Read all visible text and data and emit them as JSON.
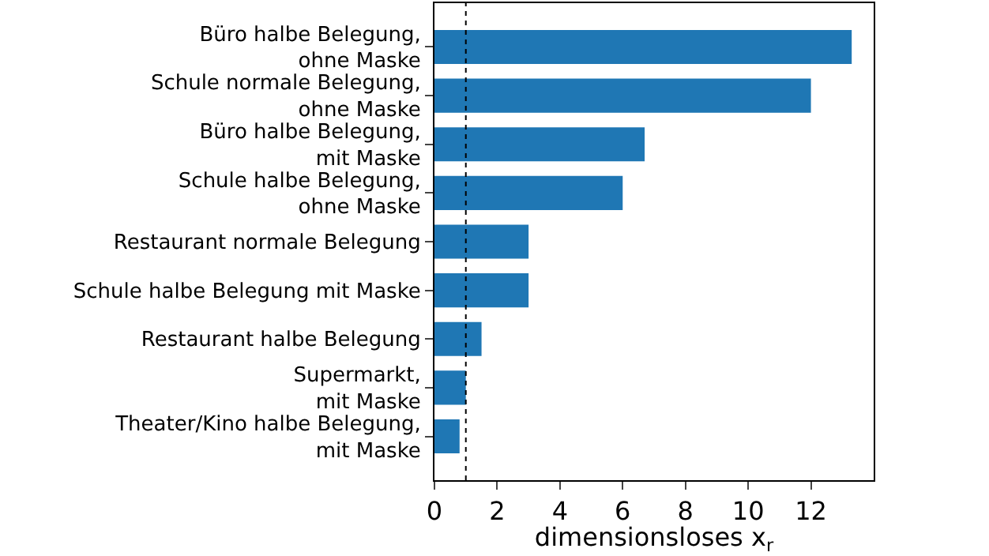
{
  "chart_data": {
    "type": "bar",
    "orientation": "horizontal",
    "xlabel": "dimensionsloses x$_{r}$",
    "categories": [
      "Büro halbe Belegung,\nohne Maske",
      "Schule normale Belegung,\nohne Maske",
      "Büro halbe Belegung,\nmit Maske",
      "Schule halbe Belegung,\nohne Maske",
      "Restaurant normale Belegung",
      "Schule halbe Belegung mit Maske",
      "Restaurant halbe Belegung",
      "Supermarkt,\nmit Maske",
      "Theater/Kino halbe Belegung,\nmit Maske"
    ],
    "values": [
      13.3,
      12,
      6.7,
      6,
      3,
      3,
      1.5,
      1,
      0.8
    ],
    "color": "#1f77b4",
    "xlim": [
      0,
      14
    ],
    "xticks": [
      0,
      2,
      4,
      6,
      8,
      10,
      12
    ],
    "ref_lines": [
      {
        "axis": "x",
        "value": 1,
        "color": "#000000",
        "line_style": "dotted"
      }
    ],
    "legend": false
  }
}
